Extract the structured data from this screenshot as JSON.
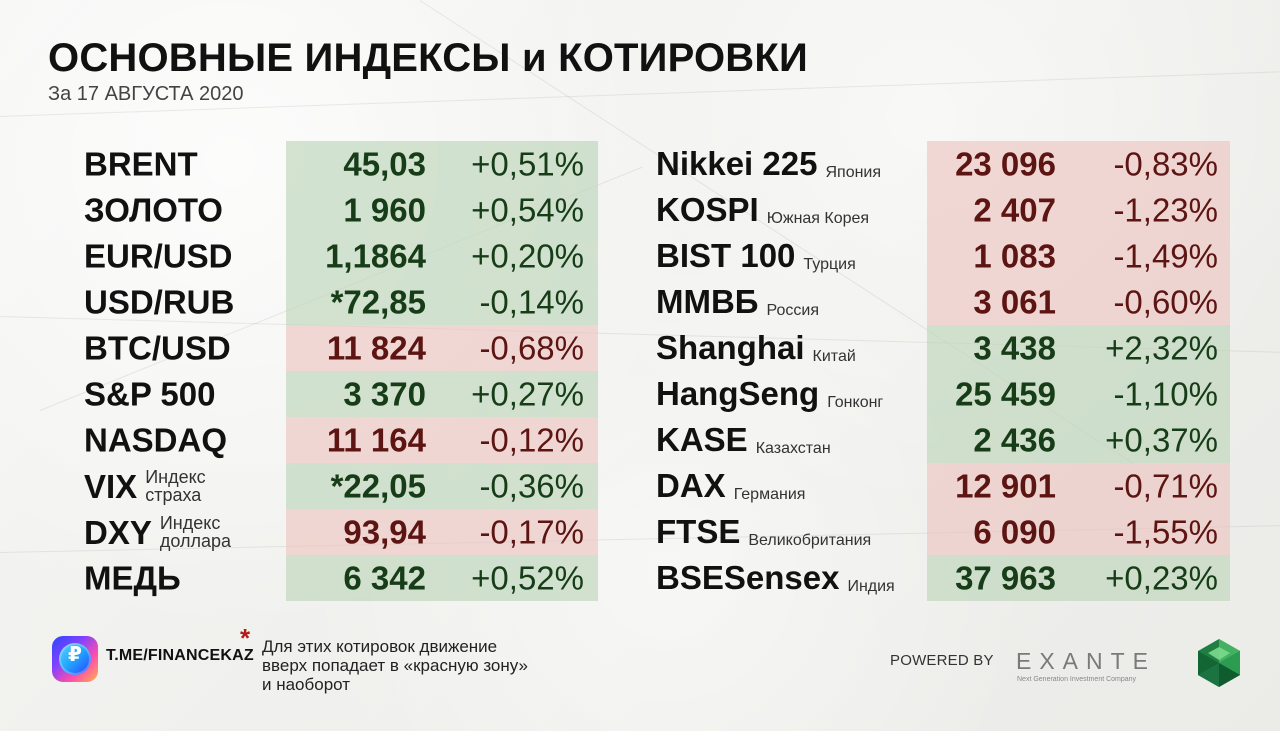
{
  "title": "ОСНОВНЫЕ ИНДЕКСЫ и КОТИРОВКИ",
  "date": "За 17 АВГУСТА 2020",
  "left_items": [
    {
      "name": "BRENT",
      "value": "45,03",
      "change": "+0,51%",
      "color": "green"
    },
    {
      "name": "ЗОЛОТО",
      "value": "1 960",
      "change": "+0,54%",
      "color": "green"
    },
    {
      "name": "EUR/USD",
      "value": "1,1864",
      "change": "+0,20%",
      "color": "green"
    },
    {
      "name": "USD/RUB",
      "value": "*72,85",
      "change": "-0,14%",
      "color": "green"
    },
    {
      "name": "BTC/USD",
      "value": "11 824",
      "change": "-0,68%",
      "color": "red"
    },
    {
      "name": "S&P 500",
      "value": "3 370",
      "change": "+0,27%",
      "color": "green"
    },
    {
      "name": "NASDAQ",
      "value": "11 164",
      "change": "-0,12%",
      "color": "red"
    },
    {
      "name": "VIX",
      "label_line_1": "Индекс",
      "label_line_2": "страха",
      "value": "*22,05",
      "change": "-0,36%",
      "color": "green"
    },
    {
      "name": "DXY",
      "label_line_1": "Индекс",
      "label_line_2": "доллара",
      "value": "93,94",
      "change": "-0,17%",
      "color": "red"
    },
    {
      "name": "МЕДЬ",
      "value": "6 342",
      "change": "+0,52%",
      "color": "green"
    }
  ],
  "right_items": [
    {
      "name": "Nikkei 225",
      "country": "Япония",
      "value": "23 096",
      "change": "-0,83%",
      "color": "red"
    },
    {
      "name": "KOSPI",
      "country": "Южная Корея",
      "value": "2 407",
      "change": "-1,23%",
      "color": "red"
    },
    {
      "name": "BIST 100",
      "country": "Турция",
      "value": "1 083",
      "change": "-1,49%",
      "color": "red"
    },
    {
      "name": "ММВБ",
      "country": "Россия",
      "value": "3 061",
      "change": "-0,60%",
      "color": "red"
    },
    {
      "name": "Shanghai",
      "country": "Китай",
      "value": "3 438",
      "change": "+2,32%",
      "color": "green"
    },
    {
      "name": "HangSeng",
      "country": "Гонконг",
      "value": "25 459",
      "change": "-1,10%",
      "color": "green"
    },
    {
      "name": "KASE",
      "country": "Казахстан",
      "value": "2 436",
      "change": "+0,37%",
      "color": "green"
    },
    {
      "name": "DAX",
      "country": "Германия",
      "value": "12 901",
      "change": "-0,71%",
      "color": "red"
    },
    {
      "name": "FTSE",
      "country": "Великобритания",
      "value": "6 090",
      "change": "-1,55%",
      "color": "red"
    },
    {
      "name": "BSESensex",
      "country": "Индия",
      "value": "37 963",
      "change": "+0,23%",
      "color": "green"
    }
  ],
  "footer": {
    "handle": "T.ME/FINANCEKAZ",
    "note_star": "*",
    "note_line_1": "Для этих котировок движение",
    "note_line_2": "вверх попадает в «красную зону»",
    "note_line_3": "и наоборот",
    "powered_by": "POWERED BY",
    "brand": "EXANTE",
    "tagline": "Next Generation Investment Company"
  },
  "colors": {
    "green_text": "#173d18",
    "red_text": "#5c1513",
    "green_band": "#bed6bb",
    "red_band": "#eec4be"
  }
}
